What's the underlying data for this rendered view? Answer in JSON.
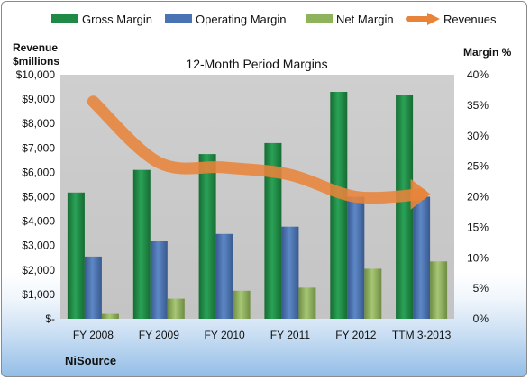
{
  "chart_data": {
    "type": "bar",
    "title": "12-Month Period Margins",
    "company": "NiSource",
    "ylabel_left_line1": "Revenue",
    "ylabel_left_line2": "$millions",
    "ylabel_right": "Margin %",
    "categories": [
      "FY 2008",
      "FY 2009",
      "FY 2010",
      "FY 2011",
      "FY 2012",
      "TTM 3-2013"
    ],
    "left_ticks": [
      "$-",
      "$1,000",
      "$2,000",
      "$3,000",
      "$4,000",
      "$5,000",
      "$6,000",
      "$7,000",
      "$8,000",
      "$9,000",
      "$10,000"
    ],
    "right_ticks": [
      "0%",
      "5%",
      "10%",
      "15%",
      "20%",
      "25%",
      "30%",
      "35%",
      "40%"
    ],
    "ylim_left": [
      0,
      10000
    ],
    "ylim_right": [
      0,
      40
    ],
    "grid": false,
    "legend_position": "top",
    "series": [
      {
        "name": "Gross Margin",
        "axis": "right",
        "color": "#1e8a45",
        "values": [
          20.7,
          24.4,
          27.0,
          28.8,
          37.2,
          36.6
        ]
      },
      {
        "name": "Operating Margin",
        "axis": "right",
        "color": "#4a73b3",
        "values": [
          10.2,
          12.7,
          13.9,
          15.1,
          20.0,
          20.0
        ]
      },
      {
        "name": "Net Margin",
        "axis": "right",
        "color": "#8fb35a",
        "values": [
          0.8,
          3.3,
          4.6,
          5.1,
          8.2,
          9.4
        ]
      },
      {
        "name": "Revenues",
        "axis": "left",
        "type": "line",
        "color": "#e8843a",
        "values": [
          8900,
          6400,
          6200,
          5900,
          5000,
          5100
        ]
      }
    ]
  }
}
